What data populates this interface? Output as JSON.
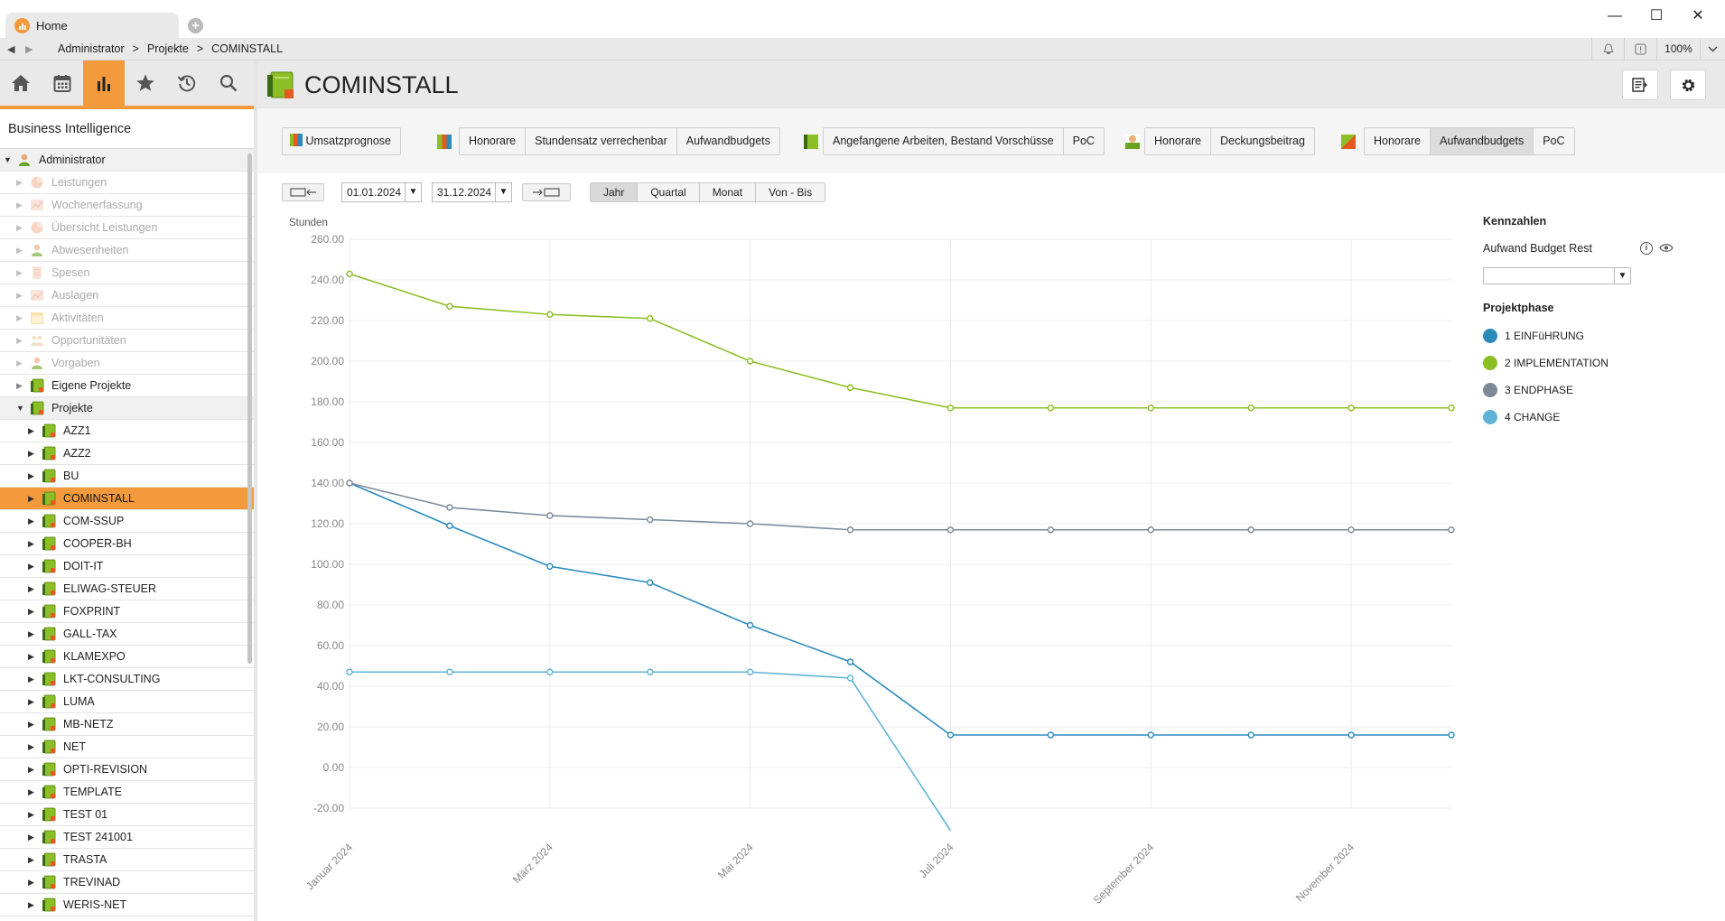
{
  "window": {
    "tab_title": "Home",
    "minimize": "—",
    "maximize": "☐",
    "close": "✕"
  },
  "breadcrumb": {
    "items": [
      "Administrator",
      ">",
      "Projekte",
      ">",
      "COMINSTALL"
    ],
    "zoom": "100%"
  },
  "nav": {
    "icons": [
      "home-icon",
      "calendar-icon",
      "bar-chart-icon",
      "star-icon",
      "history-icon",
      "search-icon"
    ],
    "active": 2
  },
  "sidebar": {
    "title": "Business Intelligence",
    "tree": [
      {
        "label": "Administrator",
        "level": 0,
        "expanded": true,
        "icon": "user",
        "state": "hl"
      },
      {
        "label": "Leistungen",
        "level": 1,
        "icon": "pie",
        "state": "disabled"
      },
      {
        "label": "Wochenerfassung",
        "level": 1,
        "icon": "chart",
        "state": "disabled"
      },
      {
        "label": "Übersicht Leistungen",
        "level": 1,
        "icon": "pie",
        "state": "disabled"
      },
      {
        "label": "Abwesenheiten",
        "level": 1,
        "icon": "user",
        "state": "disabled"
      },
      {
        "label": "Spesen",
        "level": 1,
        "icon": "doc",
        "state": "disabled"
      },
      {
        "label": "Auslagen",
        "level": 1,
        "icon": "chart",
        "state": "disabled"
      },
      {
        "label": "Aktivitäten",
        "level": 1,
        "icon": "cal",
        "state": "disabled"
      },
      {
        "label": "Opportunitäten",
        "level": 1,
        "icon": "people",
        "state": "disabled"
      },
      {
        "label": "Vorgaben",
        "level": 1,
        "icon": "user",
        "state": "disabled"
      },
      {
        "label": "Eigene Projekte",
        "level": 1,
        "icon": "book",
        "state": ""
      },
      {
        "label": "Projekte",
        "level": 1,
        "expanded": true,
        "icon": "book",
        "state": "hl"
      },
      {
        "label": "AZZ1",
        "level": 2,
        "icon": "book",
        "state": ""
      },
      {
        "label": "AZZ2",
        "level": 2,
        "icon": "book",
        "state": ""
      },
      {
        "label": "BU",
        "level": 2,
        "icon": "book",
        "state": ""
      },
      {
        "label": "COMINSTALL",
        "level": 2,
        "icon": "book",
        "state": "selected"
      },
      {
        "label": "COM-SSUP",
        "level": 2,
        "icon": "book",
        "state": ""
      },
      {
        "label": "COOPER-BH",
        "level": 2,
        "icon": "book",
        "state": ""
      },
      {
        "label": "DOIT-IT",
        "level": 2,
        "icon": "book",
        "state": ""
      },
      {
        "label": "ELIWAG-STEUER",
        "level": 2,
        "icon": "book",
        "state": ""
      },
      {
        "label": "FOXPRINT",
        "level": 2,
        "icon": "book",
        "state": ""
      },
      {
        "label": "GALL-TAX",
        "level": 2,
        "icon": "book",
        "state": ""
      },
      {
        "label": "KLAMEXPO",
        "level": 2,
        "icon": "book",
        "state": ""
      },
      {
        "label": "LKT-CONSULTING",
        "level": 2,
        "icon": "book",
        "state": ""
      },
      {
        "label": "LUMA",
        "level": 2,
        "icon": "book",
        "state": ""
      },
      {
        "label": "MB-NETZ",
        "level": 2,
        "icon": "book",
        "state": ""
      },
      {
        "label": "NET",
        "level": 2,
        "icon": "book",
        "state": ""
      },
      {
        "label": "OPTI-REVISION",
        "level": 2,
        "icon": "book",
        "state": ""
      },
      {
        "label": "TEMPLATE",
        "level": 2,
        "icon": "book",
        "state": ""
      },
      {
        "label": "TEST 01",
        "level": 2,
        "icon": "book",
        "state": ""
      },
      {
        "label": "TEST 241001",
        "level": 2,
        "icon": "book",
        "state": ""
      },
      {
        "label": "TRASTA",
        "level": 2,
        "icon": "book",
        "state": ""
      },
      {
        "label": "TREVINAD",
        "level": 2,
        "icon": "book",
        "state": ""
      },
      {
        "label": "WERIS-NET",
        "level": 2,
        "icon": "book",
        "state": ""
      }
    ]
  },
  "header": {
    "title": "COMINSTALL"
  },
  "toolbar": {
    "umsatz": "Umsatzprognose",
    "g1": [
      "Honorare",
      "Stundensatz verrechenbar",
      "Aufwandbudgets"
    ],
    "g2": [
      "Angefangene Arbeiten, Bestand Vorschüsse",
      "PoC"
    ],
    "g3": [
      "Honorare",
      "Deckungsbeitrag"
    ],
    "g4": [
      "Honorare",
      "Aufwandbudgets",
      "PoC"
    ],
    "g4_active": 1
  },
  "period": {
    "from": "01.01.2024",
    "to": "31.12.2024",
    "options": [
      "Jahr",
      "Quartal",
      "Monat",
      "Von - Bis"
    ],
    "active": 0
  },
  "kennzahlen": {
    "title": "Kennzahlen",
    "label": "Aufwand Budget Rest",
    "select_value": "",
    "phase_title": "Projektphase"
  },
  "colors": {
    "accent": "#f39a3c",
    "s1": "#2b8bbd",
    "s2": "#8cbf26",
    "s3": "#7c8a98",
    "s4": "#5fb3d6"
  },
  "chart_data": {
    "type": "line",
    "ylabel": "Stunden",
    "ylim": [
      -20,
      260
    ],
    "yticks": [
      "260.00",
      "240.00",
      "220.00",
      "200.00",
      "180.00",
      "160.00",
      "140.00",
      "120.00",
      "100.00",
      "80.00",
      "60.00",
      "40.00",
      "20.00",
      "0.00",
      "-20.00"
    ],
    "x_labels": [
      "Januar 2024",
      "",
      "März 2024",
      "",
      "Mai 2024",
      "",
      "Juli 2024",
      "",
      "September 2024",
      "",
      "November 2024",
      ""
    ],
    "series": [
      {
        "name": "1 EINFüHRUNG",
        "color": "#2b8bbd",
        "values": [
          140,
          119,
          99,
          91,
          70,
          52,
          16,
          16,
          16,
          16,
          16,
          16
        ]
      },
      {
        "name": "2 IMPLEMENTATION",
        "color": "#8cbf26",
        "values": [
          243,
          227,
          223,
          221,
          200,
          187,
          177,
          177,
          177,
          177,
          177,
          177
        ]
      },
      {
        "name": "3 ENDPHASE",
        "color": "#7c8a98",
        "values": [
          140,
          128,
          124,
          122,
          120,
          117,
          117,
          117,
          117,
          117,
          117,
          117
        ]
      },
      {
        "name": "4 CHANGE",
        "color": "#5fb3d6",
        "values": [
          47,
          47,
          47,
          47,
          47,
          44,
          -31
        ]
      }
    ]
  }
}
